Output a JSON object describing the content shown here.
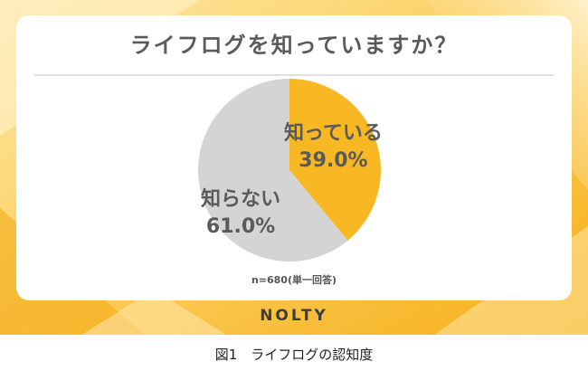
{
  "title": "ライフログを知っていますか？",
  "sample_note": "n=680(単一回答)",
  "brand_logo": "NOLTY",
  "figure_caption": "図1　ライフログの認知度",
  "colors": {
    "accent": "#f8b823",
    "accent_light": "#fde7a6",
    "slice_other": "#d4d4d4",
    "text": "#5a5a5a"
  },
  "chart_data": {
    "type": "pie",
    "title": "ライフログを知っていますか？",
    "slices": [
      {
        "label": "知っている",
        "value": 39.0,
        "display": "39.0%",
        "color": "#f8b823"
      },
      {
        "label": "知らない",
        "value": 61.0,
        "display": "61.0%",
        "color": "#d4d4d4"
      }
    ],
    "start": "top",
    "direction": "clockwise"
  }
}
